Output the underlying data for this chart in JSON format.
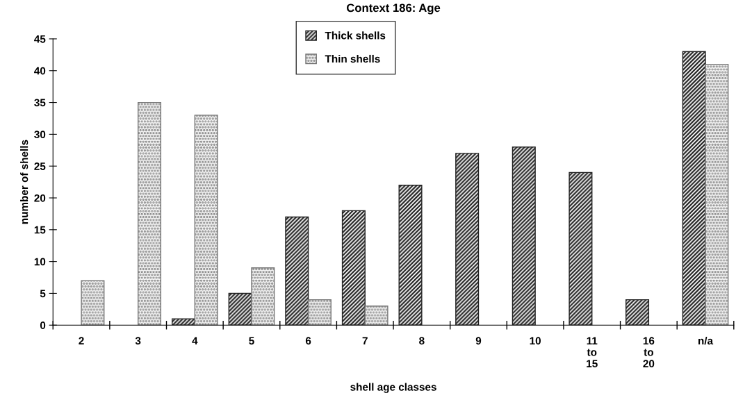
{
  "chart_data": {
    "type": "bar",
    "title": "Context 186: Age",
    "xlabel": "shell age classes",
    "ylabel": "number of shells",
    "categories": [
      "2",
      "3",
      "4",
      "5",
      "6",
      "7",
      "8",
      "9",
      "10",
      "11\nto\n15",
      "16\nto\n20",
      "n/a"
    ],
    "series": [
      {
        "name": "Thick shells",
        "color": "#222222",
        "values": [
          null,
          null,
          1,
          5,
          17,
          18,
          22,
          27,
          28,
          24,
          4,
          43
        ]
      },
      {
        "name": "Thin shells",
        "color": "#777777",
        "values": [
          7,
          35,
          33,
          9,
          4,
          3,
          null,
          null,
          null,
          null,
          null,
          41
        ]
      }
    ],
    "ylim": [
      0,
      45
    ],
    "yticks": [
      0,
      5,
      10,
      15,
      20,
      25,
      30,
      35,
      40,
      45
    ],
    "grid": false,
    "legend": "top"
  }
}
